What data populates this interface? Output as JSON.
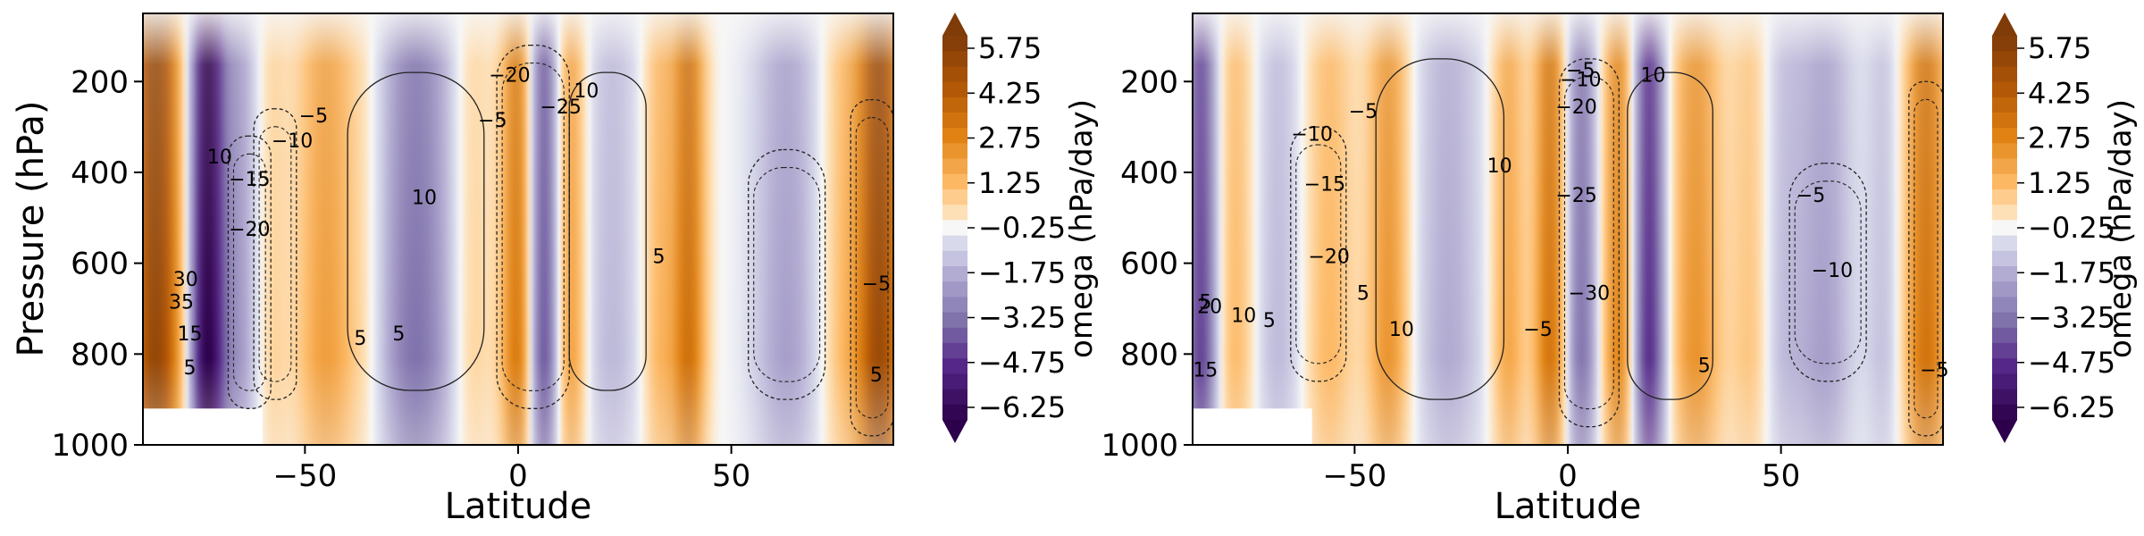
{
  "chart_data": [
    {
      "type": "heatmap",
      "panel": "left",
      "xlabel": "Latitude",
      "ylabel": "Pressure (hPa)",
      "xlim": [
        -88,
        88
      ],
      "ylim": [
        1000,
        50
      ],
      "x_ticks": [
        -50,
        0,
        50
      ],
      "y_ticks": [
        200,
        400,
        600,
        800,
        1000
      ],
      "colorbar": {
        "label": "omega (hPa/day)",
        "ticks": [
          "5.75",
          "4.25",
          "2.75",
          "1.25",
          "−0.25",
          "−1.75",
          "−3.25",
          "−4.75",
          "−6.25"
        ],
        "min": -6.25,
        "max": 6.25
      },
      "omega_bands": [
        {
          "lat": -85,
          "w": 6,
          "v": 5.5
        },
        {
          "lat": -73,
          "w": 4,
          "v": -6.0
        },
        {
          "lat": -66,
          "w": 5,
          "v": -2.0
        },
        {
          "lat": -58,
          "w": 4,
          "v": 0.8
        },
        {
          "lat": -45,
          "w": 7,
          "v": 2.2
        },
        {
          "lat": -35,
          "w": 5,
          "v": 0.6
        },
        {
          "lat": -24,
          "w": 9,
          "v": -3.0
        },
        {
          "lat": -11,
          "w": 5,
          "v": 1.0
        },
        {
          "lat": 0,
          "w": 4,
          "v": 3.5
        },
        {
          "lat": 6,
          "w": 4,
          "v": -4.0
        },
        {
          "lat": 12,
          "w": 4,
          "v": 2.5
        },
        {
          "lat": 22,
          "w": 7,
          "v": -1.2
        },
        {
          "lat": 33,
          "w": 4,
          "v": 1.5
        },
        {
          "lat": 40,
          "w": 4,
          "v": 3.5
        },
        {
          "lat": 63,
          "w": 8,
          "v": -1.8
        },
        {
          "lat": 77,
          "w": 6,
          "v": 1.5
        },
        {
          "lat": 85,
          "w": 5,
          "v": 5.0
        }
      ],
      "contour_labels": [
        "10",
        "−15",
        "−20",
        "−10",
        "−5",
        "5",
        "10",
        "−5",
        "−20",
        "−25",
        "10",
        "5",
        "5",
        "−5",
        "30",
        "35",
        "15",
        "5",
        "5"
      ]
    },
    {
      "type": "heatmap",
      "panel": "right",
      "xlabel": "Latitude",
      "ylabel": "",
      "xlim": [
        -88,
        88
      ],
      "ylim": [
        1000,
        50
      ],
      "x_ticks": [
        -50,
        0,
        50
      ],
      "y_ticks": [
        200,
        400,
        600,
        800,
        1000
      ],
      "colorbar": {
        "label": "omega (hPa/day)",
        "ticks": [
          "5.75",
          "4.25",
          "2.75",
          "1.25",
          "−0.25",
          "−1.75",
          "−3.25",
          "−4.75",
          "−6.25"
        ],
        "min": -6.25,
        "max": 6.25
      },
      "omega_bands": [
        {
          "lat": -86,
          "w": 4,
          "v": -4.0
        },
        {
          "lat": -78,
          "w": 5,
          "v": 1.5
        },
        {
          "lat": -68,
          "w": 6,
          "v": -1.2
        },
        {
          "lat": -56,
          "w": 6,
          "v": 1.5
        },
        {
          "lat": -42,
          "w": 5,
          "v": 2.5
        },
        {
          "lat": -28,
          "w": 8,
          "v": -1.5
        },
        {
          "lat": -14,
          "w": 4,
          "v": 2.0
        },
        {
          "lat": -4,
          "w": 4,
          "v": 3.5
        },
        {
          "lat": 3,
          "w": 4,
          "v": -3.0
        },
        {
          "lat": 12,
          "w": 4,
          "v": 3.0
        },
        {
          "lat": 19,
          "w": 4,
          "v": -4.5
        },
        {
          "lat": 30,
          "w": 6,
          "v": 2.5
        },
        {
          "lat": 43,
          "w": 5,
          "v": 1.2
        },
        {
          "lat": 50,
          "w": 5,
          "v": -1.0
        },
        {
          "lat": 60,
          "w": 7,
          "v": -1.8
        },
        {
          "lat": 74,
          "w": 4,
          "v": -1.0
        },
        {
          "lat": 84,
          "w": 5,
          "v": 3.5
        }
      ],
      "contour_labels": [
        "5",
        "−10",
        "−5",
        "−15",
        "−20",
        "5",
        "10",
        "10",
        "−10",
        "−5",
        "10",
        "−20",
        "−25",
        "−30",
        "5",
        "−5",
        "−5",
        "−10",
        "−5",
        "5",
        "15",
        "10",
        "20"
      ]
    }
  ]
}
